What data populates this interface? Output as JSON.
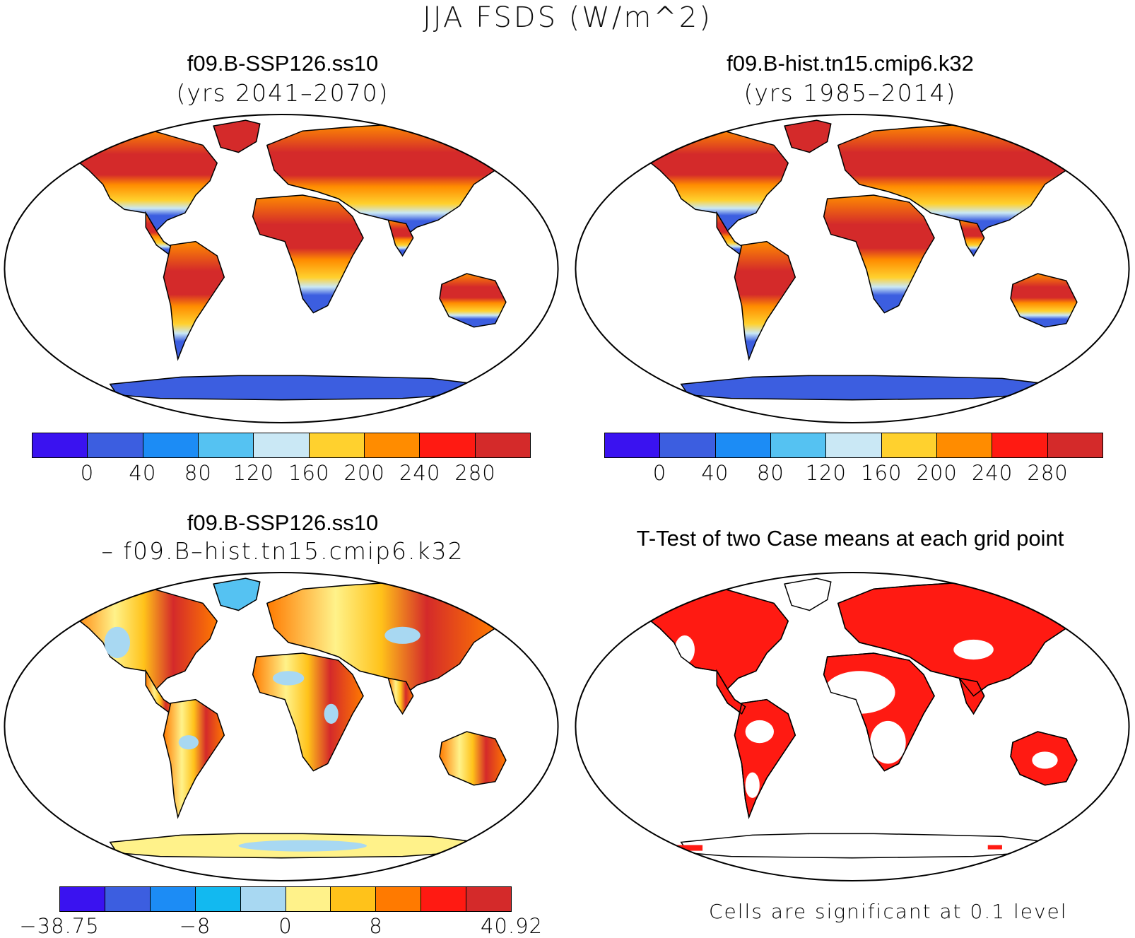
{
  "title": "JJA FSDS (W/m^2)",
  "panels": [
    {
      "id": "p1",
      "title": "f09.B-SSP126.ss10",
      "subtitle": "(yrs 2041–2070)"
    },
    {
      "id": "p2",
      "title": "f09.B-hist.tn15.cmip6.k32",
      "subtitle": "(yrs 1985–2014)"
    },
    {
      "id": "p3",
      "title": "f09.B-SSP126.ss10",
      "subtitle": "– f09.B–hist.tn15.cmip6.k32"
    },
    {
      "id": "p4",
      "title": "T-Test of two Case means at each grid point",
      "subtitle": ""
    }
  ],
  "colorbar_abs": {
    "colors": [
      "#3a12f0",
      "#3c5ee0",
      "#1c8cf5",
      "#55c2f2",
      "#cae8f5",
      "#ffd12e",
      "#ff8c00",
      "#ff1a12",
      "#d42a2a"
    ],
    "ticks": [
      "0",
      "40",
      "80",
      "120",
      "160",
      "200",
      "240",
      "280"
    ]
  },
  "colorbar_diff": {
    "colors": [
      "#3a12f0",
      "#3c5ee0",
      "#1c8cf5",
      "#12b9f0",
      "#a8d8f2",
      "#fff28a",
      "#ffc21a",
      "#ff7a00",
      "#ff1a12",
      "#d42a2a"
    ],
    "ticks": [
      "−38.75",
      "−8",
      "0",
      "8",
      "40.92"
    ]
  },
  "significance_note": "Cells are significant at 0.1 level",
  "significance_color": "#ff1a12"
}
